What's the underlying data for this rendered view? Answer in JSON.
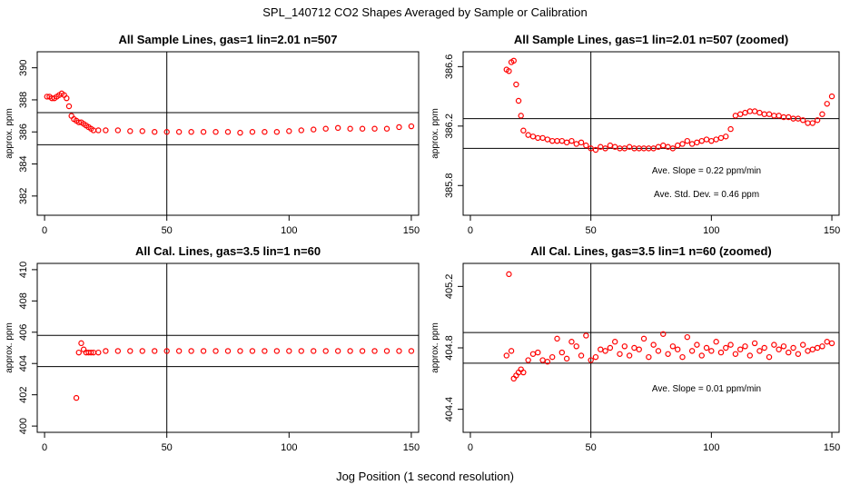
{
  "figure": {
    "title": "SPL_140712  CO2 Shapes Averaged by Sample or Calibration",
    "xlabel": "Jog Position (1 second resolution)"
  },
  "colors": {
    "points": "#ff0000",
    "axis": "#000000",
    "background": "#ffffff"
  },
  "chart_data": [
    {
      "type": "scatter",
      "title": "All Sample Lines, gas=1 lin=2.01 n=507",
      "ylabel": "approx. ppm",
      "xlim": [
        -3,
        153
      ],
      "ylim": [
        380.8,
        391.0
      ],
      "xticks": [
        0,
        50,
        100,
        150
      ],
      "yticks": [
        382,
        384,
        386,
        388,
        390
      ],
      "vline": 50,
      "hlines": [
        385.2,
        387.2
      ],
      "annotations": [],
      "series": [
        {
          "name": "sample",
          "x": [
            1,
            2,
            3,
            4,
            5,
            6,
            7,
            8,
            9,
            10,
            11,
            12,
            13,
            14,
            15,
            16,
            17,
            18,
            19,
            20,
            22,
            25,
            30,
            35,
            40,
            45,
            50,
            55,
            60,
            65,
            70,
            75,
            80,
            85,
            90,
            95,
            100,
            105,
            110,
            115,
            120,
            125,
            130,
            135,
            140,
            145,
            150
          ],
          "y": [
            388.2,
            388.2,
            388.1,
            388.1,
            388.2,
            388.3,
            388.4,
            388.3,
            388.1,
            387.6,
            387.0,
            386.8,
            386.7,
            386.6,
            386.6,
            386.5,
            386.4,
            386.3,
            386.2,
            386.1,
            386.1,
            386.1,
            386.1,
            386.05,
            386.05,
            386.0,
            386.0,
            386.0,
            386.0,
            386.0,
            386.0,
            386.0,
            385.95,
            386.0,
            386.0,
            386.0,
            386.05,
            386.1,
            386.15,
            386.2,
            386.25,
            386.2,
            386.2,
            386.2,
            386.2,
            386.3,
            386.35
          ]
        }
      ]
    },
    {
      "type": "scatter",
      "title": "All Sample Lines, gas=1 lin=2.01 n=507 (zoomed)",
      "ylabel": "approx. ppm",
      "xlim": [
        -3,
        153
      ],
      "ylim": [
        385.6,
        386.7
      ],
      "xticks": [
        0,
        50,
        100,
        150
      ],
      "yticks": [
        385.8,
        386.2,
        386.6
      ],
      "ytick_labels": [
        "385.8",
        "386.2",
        "386.6"
      ],
      "vline": 50,
      "hlines": [
        386.05,
        386.25
      ],
      "annotations": [
        "Ave. Slope =  0.22  ppm/min",
        "Ave. Std. Dev. =  0.46  ppm"
      ],
      "series": [
        {
          "name": "sample-zoomed",
          "x": [
            15,
            16,
            17,
            18,
            19,
            20,
            21,
            22,
            24,
            26,
            28,
            30,
            32,
            34,
            36,
            38,
            40,
            42,
            44,
            46,
            48,
            50,
            52,
            54,
            56,
            58,
            60,
            62,
            64,
            66,
            68,
            70,
            72,
            74,
            76,
            78,
            80,
            82,
            84,
            86,
            88,
            90,
            92,
            94,
            96,
            98,
            100,
            102,
            104,
            106,
            108,
            110,
            112,
            114,
            116,
            118,
            120,
            122,
            124,
            126,
            128,
            130,
            132,
            134,
            136,
            138,
            140,
            142,
            144,
            146,
            148,
            150
          ],
          "y": [
            386.58,
            386.57,
            386.63,
            386.64,
            386.48,
            386.37,
            386.27,
            386.17,
            386.14,
            386.13,
            386.12,
            386.12,
            386.11,
            386.1,
            386.1,
            386.1,
            386.09,
            386.1,
            386.08,
            386.09,
            386.07,
            386.05,
            386.04,
            386.06,
            386.05,
            386.07,
            386.06,
            386.05,
            386.05,
            386.06,
            386.05,
            386.05,
            386.05,
            386.05,
            386.05,
            386.06,
            386.07,
            386.06,
            386.05,
            386.07,
            386.08,
            386.1,
            386.08,
            386.09,
            386.1,
            386.11,
            386.1,
            386.11,
            386.12,
            386.13,
            386.18,
            386.27,
            386.28,
            386.29,
            386.3,
            386.3,
            386.29,
            386.28,
            386.28,
            386.27,
            386.27,
            386.26,
            386.26,
            386.25,
            386.25,
            386.24,
            386.22,
            386.22,
            386.24,
            386.28,
            386.35,
            386.4
          ]
        }
      ]
    },
    {
      "type": "scatter",
      "title": "All Cal. Lines, gas=3.5 lin=1 n=60",
      "ylabel": "approx. ppm",
      "xlim": [
        -3,
        153
      ],
      "ylim": [
        399.6,
        410.4
      ],
      "xticks": [
        0,
        50,
        100,
        150
      ],
      "yticks": [
        400,
        402,
        404,
        406,
        408,
        410
      ],
      "vline": 50,
      "hlines": [
        403.8,
        405.8
      ],
      "annotations": [],
      "series": [
        {
          "name": "calibration",
          "x": [
            13,
            14,
            15,
            16,
            17,
            18,
            19,
            20,
            22,
            25,
            30,
            35,
            40,
            45,
            50,
            55,
            60,
            65,
            70,
            75,
            80,
            85,
            90,
            95,
            100,
            105,
            110,
            115,
            120,
            125,
            130,
            135,
            140,
            145,
            150
          ],
          "y": [
            401.8,
            404.7,
            405.3,
            404.9,
            404.7,
            404.7,
            404.7,
            404.7,
            404.7,
            404.8,
            404.8,
            404.8,
            404.8,
            404.8,
            404.8,
            404.8,
            404.8,
            404.8,
            404.8,
            404.8,
            404.8,
            404.8,
            404.8,
            404.8,
            404.8,
            404.8,
            404.8,
            404.8,
            404.8,
            404.8,
            404.8,
            404.8,
            404.8,
            404.8,
            404.8
          ]
        }
      ]
    },
    {
      "type": "scatter",
      "title": "All Cal. Lines, gas=3.5 lin=1 n=60 (zoomed)",
      "ylabel": "approx. ppm",
      "xlim": [
        -3,
        153
      ],
      "ylim": [
        404.25,
        405.35
      ],
      "xticks": [
        0,
        50,
        100,
        150
      ],
      "yticks": [
        404.4,
        404.8,
        405.2
      ],
      "ytick_labels": [
        "404.4",
        "404.8",
        "405.2"
      ],
      "vline": 50,
      "hlines": [
        404.7,
        404.9
      ],
      "annotations": [
        "Ave. Slope =  0.01  ppm/min"
      ],
      "series": [
        {
          "name": "calibration-zoomed",
          "x": [
            15,
            16,
            17,
            18,
            19,
            20,
            21,
            22,
            24,
            26,
            28,
            30,
            32,
            34,
            36,
            38,
            40,
            42,
            44,
            46,
            48,
            50,
            52,
            54,
            56,
            58,
            60,
            62,
            64,
            66,
            68,
            70,
            72,
            74,
            76,
            78,
            80,
            82,
            84,
            86,
            88,
            90,
            92,
            94,
            96,
            98,
            100,
            102,
            104,
            106,
            108,
            110,
            112,
            114,
            116,
            118,
            120,
            122,
            124,
            126,
            128,
            130,
            132,
            134,
            136,
            138,
            140,
            142,
            144,
            146,
            148,
            150
          ],
          "y": [
            404.75,
            405.28,
            404.78,
            404.6,
            404.62,
            404.64,
            404.66,
            404.64,
            404.72,
            404.76,
            404.77,
            404.72,
            404.71,
            404.74,
            404.86,
            404.77,
            404.73,
            404.84,
            404.81,
            404.75,
            404.88,
            404.72,
            404.74,
            404.79,
            404.78,
            404.8,
            404.84,
            404.76,
            404.81,
            404.75,
            404.8,
            404.79,
            404.86,
            404.74,
            404.82,
            404.78,
            404.89,
            404.76,
            404.81,
            404.79,
            404.74,
            404.87,
            404.78,
            404.82,
            404.75,
            404.8,
            404.78,
            404.84,
            404.77,
            404.8,
            404.82,
            404.76,
            404.79,
            404.81,
            404.75,
            404.83,
            404.78,
            404.8,
            404.74,
            404.82,
            404.79,
            404.81,
            404.77,
            404.8,
            404.76,
            404.82,
            404.78,
            404.79,
            404.8,
            404.81,
            404.84,
            404.83
          ]
        }
      ]
    }
  ]
}
